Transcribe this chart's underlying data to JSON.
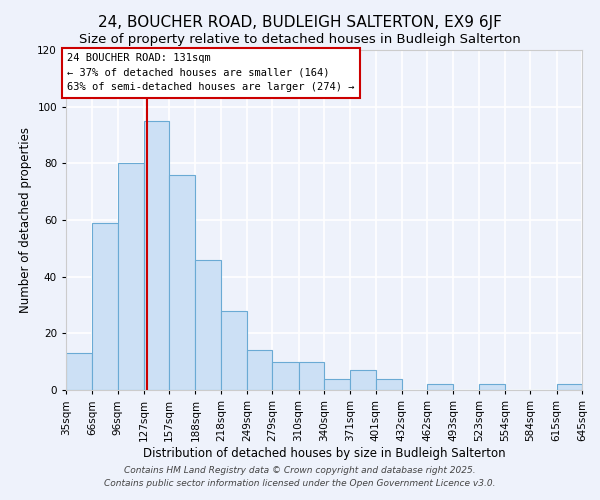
{
  "title": "24, BOUCHER ROAD, BUDLEIGH SALTERTON, EX9 6JF",
  "subtitle": "Size of property relative to detached houses in Budleigh Salterton",
  "xlabel": "Distribution of detached houses by size in Budleigh Salterton",
  "ylabel": "Number of detached properties",
  "bin_edges": [
    35,
    66,
    96,
    127,
    157,
    188,
    218,
    249,
    279,
    310,
    340,
    371,
    401,
    432,
    462,
    493,
    523,
    554,
    584,
    615,
    645
  ],
  "bin_labels": [
    "35sqm",
    "66sqm",
    "96sqm",
    "127sqm",
    "157sqm",
    "188sqm",
    "218sqm",
    "249sqm",
    "279sqm",
    "310sqm",
    "340sqm",
    "371sqm",
    "401sqm",
    "432sqm",
    "462sqm",
    "493sqm",
    "523sqm",
    "554sqm",
    "584sqm",
    "615sqm",
    "645sqm"
  ],
  "bar_heights": [
    13,
    59,
    80,
    95,
    76,
    46,
    28,
    14,
    10,
    10,
    4,
    7,
    4,
    0,
    2,
    0,
    2,
    0,
    0,
    2
  ],
  "bar_color": "#cce0f5",
  "bar_edge_color": "#6aaad4",
  "vline_x": 131,
  "vline_color": "#cc0000",
  "ylim": [
    0,
    120
  ],
  "annotation_line1": "24 BOUCHER ROAD: 131sqm",
  "annotation_line2": "← 37% of detached houses are smaller (164)",
  "annotation_line3": "63% of semi-detached houses are larger (274) →",
  "annotation_box_color": "#ffffff",
  "annotation_box_edge": "#cc0000",
  "footnote1": "Contains HM Land Registry data © Crown copyright and database right 2025.",
  "footnote2": "Contains public sector information licensed under the Open Government Licence v3.0.",
  "background_color": "#eef2fb",
  "plot_bg_color": "#eef2fb",
  "grid_color": "#ffffff",
  "title_fontsize": 11,
  "subtitle_fontsize": 9.5,
  "axis_label_fontsize": 8.5,
  "tick_fontsize": 7.5,
  "annotation_fontsize": 7.5,
  "footnote_fontsize": 6.5
}
